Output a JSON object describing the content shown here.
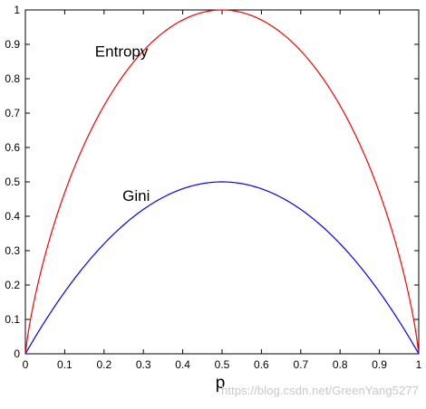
{
  "chart_data": {
    "type": "line",
    "title": "",
    "xlabel": "p",
    "ylabel": "",
    "xlim": [
      0,
      1
    ],
    "ylim": [
      0,
      1
    ],
    "x_ticks": [
      0,
      0.1,
      0.2,
      0.3,
      0.4,
      0.5,
      0.6,
      0.7,
      0.8,
      0.9,
      1
    ],
    "x_tick_labels": [
      "0",
      "0.1",
      "0.2",
      "0.3",
      "0.4",
      "0.5",
      "0.6",
      "0.7",
      "0.8",
      "0.9",
      "1"
    ],
    "y_ticks": [
      0,
      0.1,
      0.2,
      0.3,
      0.4,
      0.5,
      0.6,
      0.7,
      0.8,
      0.9,
      1
    ],
    "y_tick_labels": [
      "0",
      "0.1",
      "0.2",
      "0.3",
      "0.4",
      "0.5",
      "0.6",
      "0.7",
      "0.8",
      "0.9",
      "1"
    ],
    "grid": false,
    "x": [
      0,
      0.05,
      0.1,
      0.15,
      0.2,
      0.25,
      0.3,
      0.35,
      0.4,
      0.45,
      0.5,
      0.55,
      0.6,
      0.65,
      0.7,
      0.75,
      0.8,
      0.85,
      0.9,
      0.95,
      1
    ],
    "series": [
      {
        "name": "Entropy",
        "color": "#ff0000",
        "values": [
          0,
          0.286,
          0.469,
          0.61,
          0.722,
          0.811,
          0.881,
          0.934,
          0.971,
          0.993,
          1,
          0.993,
          0.971,
          0.934,
          0.881,
          0.811,
          0.722,
          0.61,
          0.469,
          0.286,
          0
        ]
      },
      {
        "name": "Gini",
        "color": "#0000ff",
        "values": [
          0,
          0.095,
          0.18,
          0.255,
          0.32,
          0.375,
          0.42,
          0.455,
          0.48,
          0.495,
          0.5,
          0.495,
          0.48,
          0.455,
          0.42,
          0.375,
          0.32,
          0.255,
          0.18,
          0.095,
          0
        ]
      }
    ],
    "annotations": [
      {
        "text": "Entropy",
        "anchor_x": 0.2,
        "anchor_y": 0.88
      },
      {
        "text": "Gini",
        "anchor_x": 0.27,
        "anchor_y": 0.46
      }
    ]
  },
  "watermark": "https://blog.csdn.net/GreenYang5277"
}
